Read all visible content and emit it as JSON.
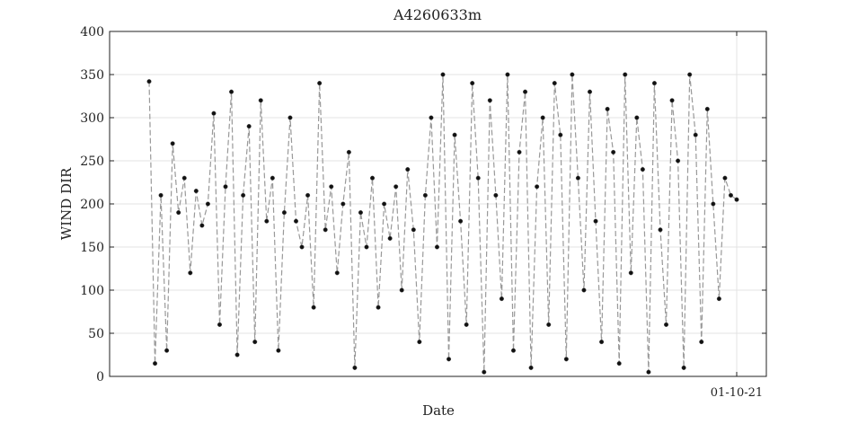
{
  "chart_data": {
    "type": "line",
    "title": "A4260633m",
    "xlabel": "Date",
    "ylabel": "WIND DIR",
    "ylim": [
      0,
      400
    ],
    "yticks": [
      0,
      50,
      100,
      150,
      200,
      250,
      300,
      350,
      400
    ],
    "xticks": [
      {
        "label": "01-10-21",
        "t": 1.0
      }
    ],
    "grid": true,
    "legend": "none",
    "series": [
      {
        "color": "#999999",
        "marker_color": "#111111",
        "x": [
          0.0,
          0.01,
          0.02,
          0.03,
          0.04,
          0.05,
          0.06,
          0.07,
          0.08,
          0.09,
          0.1,
          0.11,
          0.12,
          0.13,
          0.14,
          0.15,
          0.16,
          0.17,
          0.18,
          0.19,
          0.2,
          0.21,
          0.22,
          0.23,
          0.24,
          0.25,
          0.26,
          0.27,
          0.28,
          0.29,
          0.3,
          0.31,
          0.32,
          0.33,
          0.34,
          0.35,
          0.36,
          0.37,
          0.38,
          0.39,
          0.4,
          0.41,
          0.42,
          0.43,
          0.44,
          0.45,
          0.46,
          0.47,
          0.48,
          0.49,
          0.5,
          0.51,
          0.52,
          0.53,
          0.54,
          0.55,
          0.56,
          0.57,
          0.58,
          0.59,
          0.6,
          0.61,
          0.62,
          0.63,
          0.64,
          0.65,
          0.66,
          0.67,
          0.68,
          0.69,
          0.7,
          0.71,
          0.72,
          0.73,
          0.74,
          0.75,
          0.76,
          0.77,
          0.78,
          0.79,
          0.8,
          0.81,
          0.82,
          0.83,
          0.84,
          0.85,
          0.86,
          0.87,
          0.88,
          0.89,
          0.9,
          0.91,
          0.92,
          0.93,
          0.94,
          0.95,
          0.96,
          0.97,
          0.98,
          0.99,
          1.0
        ],
        "y": [
          342,
          15,
          210,
          30,
          270,
          190,
          230,
          120,
          215,
          175,
          200,
          305,
          60,
          220,
          330,
          25,
          210,
          290,
          40,
          320,
          180,
          230,
          30,
          190,
          300,
          180,
          150,
          210,
          80,
          340,
          170,
          220,
          120,
          200,
          260,
          10,
          190,
          150,
          230,
          80,
          200,
          160,
          220,
          100,
          240,
          170,
          40,
          210,
          300,
          150,
          350,
          20,
          280,
          180,
          60,
          340,
          230,
          5,
          320,
          210,
          90,
          350,
          30,
          260,
          330,
          10,
          220,
          300,
          60,
          340,
          280,
          20,
          350,
          230,
          100,
          330,
          180,
          40,
          310,
          260,
          15,
          350,
          120,
          300,
          240,
          5,
          340,
          170,
          60,
          320,
          250,
          10,
          350,
          280,
          40,
          310,
          200,
          90,
          230,
          210,
          205
        ]
      }
    ]
  }
}
